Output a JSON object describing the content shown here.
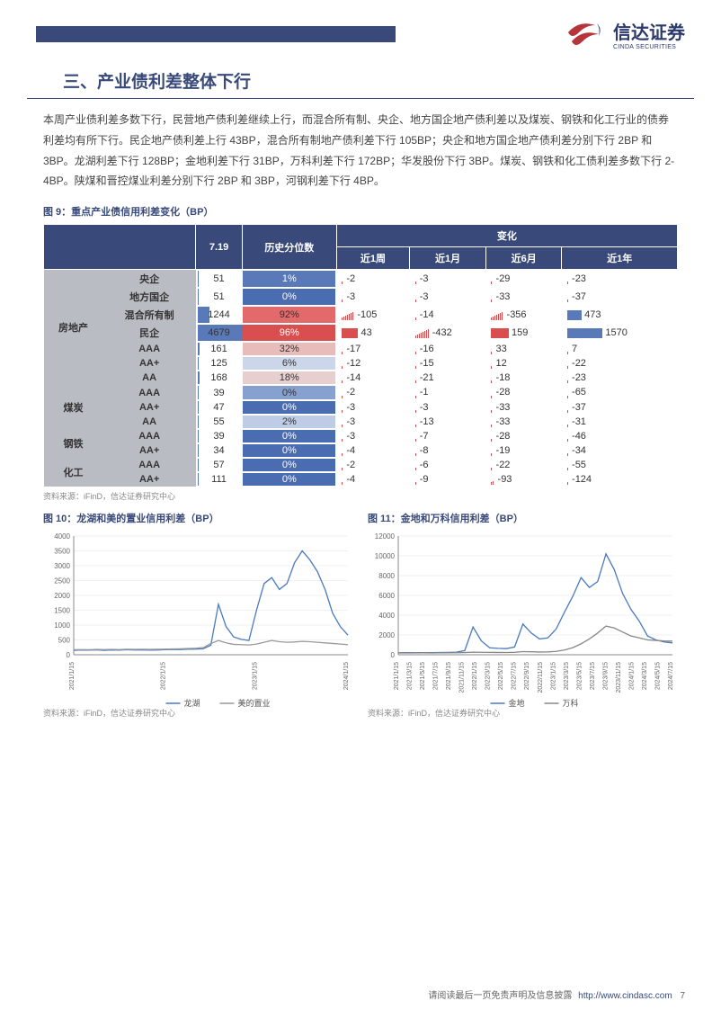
{
  "brand": {
    "cn": "信达证券",
    "en": "CINDA SECURITIES"
  },
  "section_title": "三、产业债利差整体下行",
  "body_p1": "本周产业债利差多数下行，民营地产债利差继续上行，而混合所有制、央企、地方国企地产债利差以及煤炭、钢铁和化工行业的债券利差均有所下行。民企地产债利差上行 43BP，混合所有制地产债利差下行 105BP；央企和地方国企地产债利差分别下行 2BP 和 3BP。龙湖利差下行 128BP；金地利差下行 31BP，万科利差下行 172BP；华发股份下行 3BP。煤炭、钢铁和化工债利差多数下行 2-4BP。陕煤和晋控煤业利差分别下行 2BP 和 3BP，河钢利差下行 4BP。",
  "fig9_title": "图 9：重点产业债信用利差变化（BP）",
  "table": {
    "head": {
      "c1": "7.19",
      "c2": "历史分位数",
      "cg": "变化",
      "w1": "近1周",
      "w2": "近1月",
      "w3": "近6月",
      "w4": "近1年"
    },
    "groups": [
      {
        "name": "房地产",
        "rows": [
          {
            "label": "央企",
            "v": 51,
            "pct": "1%",
            "pctbg": "#5a79b8",
            "d1": -2,
            "d2": -3,
            "d3": -29,
            "d4": -23
          },
          {
            "label": "地方国企",
            "v": 51,
            "pct": "0%",
            "pctbg": "#4a6cb0",
            "d1": -3,
            "d2": -3,
            "d3": -33,
            "d4": -37
          },
          {
            "label": "混合所有制",
            "v": 1244,
            "pct": "92%",
            "pctbg": "#e26a6a",
            "d1": -105,
            "d2": -14,
            "d3": -356,
            "d4": 473
          },
          {
            "label": "民企",
            "v": 4679,
            "pct": "96%",
            "pctbg": "#d94f4f",
            "d1": 43,
            "d2": -432,
            "d3": 159,
            "d4": 1570
          },
          {
            "label": "AAA",
            "v": 161,
            "pct": "32%",
            "pctbg": "#e9bcbc",
            "d1": -17,
            "d2": -16,
            "d3": 33,
            "d4": 7
          },
          {
            "label": "AA+",
            "v": 125,
            "pct": "6%",
            "pctbg": "#cbd6ea",
            "d1": -12,
            "d2": -15,
            "d3": 12,
            "d4": -22
          },
          {
            "label": "AA",
            "v": 168,
            "pct": "18%",
            "pctbg": "#e7cfd0",
            "d1": -14,
            "d2": -21,
            "d3": -18,
            "d4": -23
          }
        ]
      },
      {
        "name": "煤炭",
        "rows": [
          {
            "label": "AAA",
            "v": 39,
            "pct": "0%",
            "pctbg": "#86a0cf",
            "d1": -2,
            "d2": -1,
            "d3": -28,
            "d4": -65
          },
          {
            "label": "AA+",
            "v": 47,
            "pct": "0%",
            "pctbg": "#4a6cb0",
            "d1": -3,
            "d2": -3,
            "d3": -33,
            "d4": -37
          },
          {
            "label": "AA",
            "v": 55,
            "pct": "2%",
            "pctbg": "#becde5",
            "d1": -3,
            "d2": -13,
            "d3": -33,
            "d4": -31
          }
        ]
      },
      {
        "name": "钢铁",
        "rows": [
          {
            "label": "AAA",
            "v": 39,
            "pct": "0%",
            "pctbg": "#4a6cb0",
            "d1": -3,
            "d2": -7,
            "d3": -28,
            "d4": -46
          },
          {
            "label": "AA+",
            "v": 34,
            "pct": "0%",
            "pctbg": "#4a6cb0",
            "d1": -4,
            "d2": -8,
            "d3": -19,
            "d4": -34
          }
        ]
      },
      {
        "name": "化工",
        "rows": [
          {
            "label": "AAA",
            "v": 57,
            "pct": "0%",
            "pctbg": "#4a6cb0",
            "d1": -2,
            "d2": -6,
            "d3": -22,
            "d4": -55
          },
          {
            "label": "AA+",
            "v": 111,
            "pct": "0%",
            "pctbg": "#4a6cb0",
            "d1": -4,
            "d2": -9,
            "d3": -93,
            "d4": -124
          }
        ]
      }
    ],
    "styling": {
      "header_bg": "#394a7a",
      "header_color": "#ffffff",
      "rowcat_bg": "#b9bdc3",
      "bar_color": "#5a79b8",
      "bar_max": 4679,
      "redbar_pos": "#d94f4f",
      "redbar_neg_tick": "#d94f4f",
      "bluebar_pos": "#5a79b8"
    }
  },
  "source_line": "资料来源：iFinD，信达证券研究中心",
  "chart10": {
    "title": "图 10：龙湖和美的置业信用利差（BP）",
    "type": "line",
    "ylim": [
      0,
      4000
    ],
    "yticks": [
      0,
      500,
      1000,
      1500,
      2000,
      2500,
      3000,
      3500,
      4000
    ],
    "xticks": [
      "2021/1/15",
      "2022/1/15",
      "2023/1/15",
      "2024/1/15"
    ],
    "series": [
      {
        "name": "龙湖",
        "color": "#4a79c0",
        "data": [
          150,
          160,
          155,
          165,
          150,
          160,
          155,
          170,
          160,
          165,
          155,
          160,
          170,
          180,
          175,
          185,
          190,
          200,
          320,
          1700,
          950,
          600,
          520,
          480,
          1500,
          2400,
          2600,
          2200,
          2400,
          3100,
          3500,
          3200,
          2800,
          2200,
          1400,
          950,
          660
        ]
      },
      {
        "name": "美的置业",
        "color": "#999999",
        "data": [
          170,
          175,
          170,
          180,
          175,
          180,
          175,
          185,
          180,
          185,
          180,
          185,
          190,
          195,
          200,
          210,
          220,
          240,
          380,
          480,
          400,
          350,
          340,
          330,
          360,
          420,
          480,
          440,
          420,
          430,
          450,
          440,
          420,
          400,
          380,
          360,
          340
        ]
      }
    ],
    "legend_pos": "bottom",
    "source": "资料来源：iFinD，信达证券研究中心"
  },
  "chart11": {
    "title": "图 11：金地和万科信用利差（BP）",
    "type": "line",
    "ylim": [
      0,
      12000
    ],
    "yticks": [
      0,
      2000,
      4000,
      6000,
      8000,
      10000,
      12000
    ],
    "xticks": [
      "2021/1/15",
      "2021/3/15",
      "2021/5/15",
      "2021/7/15",
      "2021/9/15",
      "2021/11/15",
      "2022/1/15",
      "2022/3/15",
      "2022/5/15",
      "2022/7/15",
      "2022/9/15",
      "2022/11/15",
      "2023/1/15",
      "2023/3/15",
      "2023/5/15",
      "2023/7/15",
      "2023/9/15",
      "2023/11/15",
      "2024/1/15",
      "2024/3/15",
      "2024/5/15",
      "2024/7/15"
    ],
    "series": [
      {
        "name": "金地",
        "color": "#4a79c0",
        "data": [
          200,
          210,
          200,
          215,
          210,
          220,
          240,
          260,
          420,
          2800,
          1400,
          700,
          650,
          620,
          780,
          3100,
          2200,
          1600,
          1700,
          2600,
          4300,
          5900,
          7800,
          6800,
          7400,
          10200,
          8600,
          6200,
          4600,
          3400,
          1900,
          1500,
          1300,
          1200
        ]
      },
      {
        "name": "万科",
        "color": "#888888",
        "data": [
          180,
          185,
          180,
          190,
          185,
          190,
          200,
          210,
          220,
          260,
          250,
          240,
          235,
          230,
          245,
          320,
          300,
          280,
          290,
          340,
          480,
          720,
          1100,
          1600,
          2200,
          2900,
          2700,
          2300,
          1900,
          1700,
          1500,
          1450,
          1400,
          1380
        ]
      }
    ],
    "legend_pos": "bottom",
    "source": "资料来源：iFinD，信达证券研究中心"
  },
  "footer": {
    "text": "请阅读最后一页免责声明及信息披露",
    "url": "http://www.cindasc.com",
    "page": "7"
  }
}
